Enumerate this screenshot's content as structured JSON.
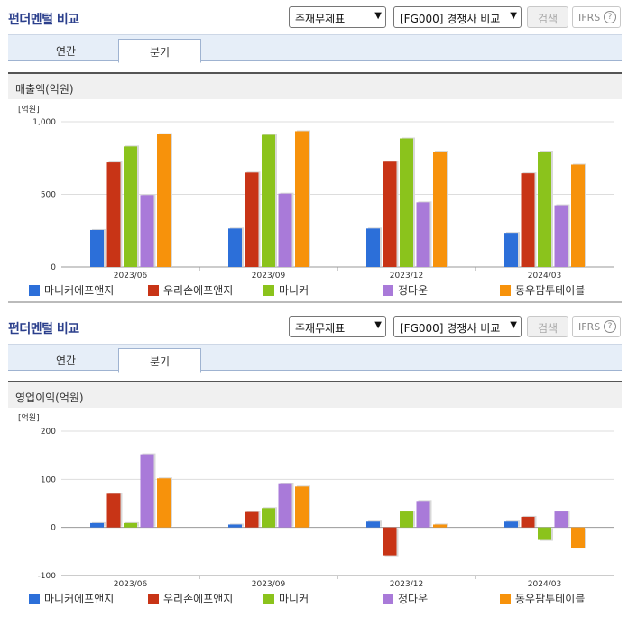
{
  "panels": [
    {
      "header": {
        "title": "펀더멘털 비교",
        "select1": "주재무제표",
        "select2": "[FG000] 경쟁사 비교",
        "search_label": "검색",
        "ifrs_label": "IFRS",
        "help_label": "?"
      },
      "tabs": [
        {
          "label": "연간"
        },
        {
          "label": "분기"
        }
      ],
      "active_tab": 1,
      "chart_title": "매출액(억원)"
    },
    {
      "header": {
        "title": "펀더멘털 비교",
        "select1": "주재무제표",
        "select2": "[FG000] 경쟁사 비교",
        "search_label": "검색",
        "ifrs_label": "IFRS",
        "help_label": "?"
      },
      "tabs": [
        {
          "label": "연간"
        },
        {
          "label": "분기"
        }
      ],
      "active_tab": 1,
      "chart_title": "영업이익(억원)"
    }
  ],
  "colors": [
    "#2c6fd9",
    "#c83416",
    "#8bc31c",
    "#a97ad9",
    "#f7920b"
  ],
  "chart_data": [
    {
      "type": "bar",
      "unit_label": "[억원]",
      "categories": [
        "2023/06",
        "2023/09",
        "2023/12",
        "2024/03"
      ],
      "ylim": [
        0,
        1000
      ],
      "yticks": [
        0,
        500,
        1000
      ],
      "ytick_labels": [
        "0",
        "500",
        "1,000"
      ],
      "series": [
        {
          "name": "마니커에프앤지",
          "values": [
            255,
            265,
            265,
            235
          ]
        },
        {
          "name": "우리손에프앤지",
          "values": [
            720,
            650,
            725,
            645
          ]
        },
        {
          "name": "마니커",
          "values": [
            830,
            910,
            885,
            795
          ]
        },
        {
          "name": "정다운",
          "values": [
            495,
            505,
            445,
            425
          ]
        },
        {
          "name": "동우팜투테이블",
          "values": [
            915,
            935,
            795,
            705
          ]
        }
      ]
    },
    {
      "type": "bar",
      "unit_label": "[억원]",
      "categories": [
        "2023/06",
        "2023/09",
        "2023/12",
        "2024/03"
      ],
      "ylim": [
        -100,
        200
      ],
      "yticks": [
        -100,
        0,
        100,
        200
      ],
      "ytick_labels": [
        "-100",
        "0",
        "100",
        "200"
      ],
      "series": [
        {
          "name": "마니커에프앤지",
          "values": [
            9,
            6,
            12,
            12
          ]
        },
        {
          "name": "우리손에프앤지",
          "values": [
            70,
            32,
            -58,
            22
          ]
        },
        {
          "name": "마니커",
          "values": [
            9,
            40,
            33,
            -26
          ]
        },
        {
          "name": "정다운",
          "values": [
            152,
            90,
            55,
            33
          ]
        },
        {
          "name": "동우팜투테이블",
          "values": [
            102,
            85,
            6,
            -42
          ]
        }
      ]
    }
  ]
}
